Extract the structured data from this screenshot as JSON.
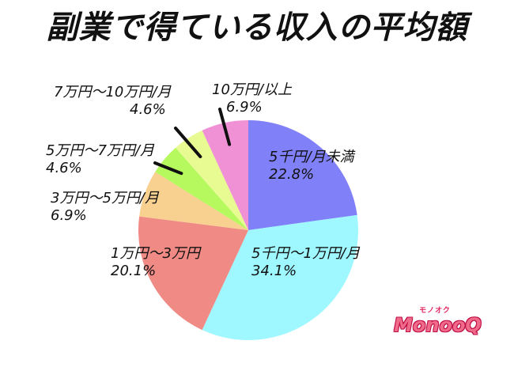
{
  "title": "副業で得ている収入の平均額",
  "logo": {
    "sub": "モノオク",
    "main": "MonooQ"
  },
  "chart_data": {
    "type": "pie",
    "title": "副業で得ている収入の平均額",
    "start": "12 o'clock",
    "direction": "clockwise",
    "series": [
      {
        "label": "5千円/月未満",
        "value_text": "22.8%",
        "value": 22.8,
        "color": "#8080f8"
      },
      {
        "label": "5千円～1万円/月",
        "value_text": "34.1%",
        "value": 34.1,
        "color": "#9ff8ff"
      },
      {
        "label": "1万円～3万円",
        "value_text": "20.1%",
        "value": 20.1,
        "color": "#f08a84"
      },
      {
        "label": "3万円～5万円/月",
        "value_text": "6.9%",
        "value": 6.9,
        "color": "#f8d090"
      },
      {
        "label": "5万円～7万円/月",
        "value_text": "4.6%",
        "value": 4.6,
        "color": "#b6f95e"
      },
      {
        "label": "7万円～10万円/月",
        "value_text": "4.6%",
        "value": 4.6,
        "color": "#e8fa92"
      },
      {
        "label": "10万円/以上",
        "value_text": "6.9%",
        "value": 6.9,
        "color": "#f091d6"
      }
    ]
  }
}
